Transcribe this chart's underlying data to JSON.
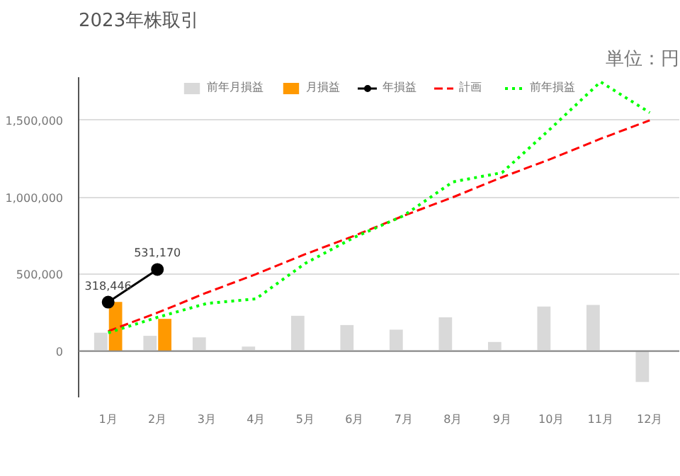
{
  "chart_data": {
    "type": "bar",
    "title": "2023年株取引",
    "annotations": [
      "単位：円"
    ],
    "categories": [
      "1月",
      "2月",
      "3月",
      "4月",
      "5月",
      "6月",
      "7月",
      "8月",
      "9月",
      "10月",
      "11月",
      "12月"
    ],
    "series": [
      {
        "name": "前年月損益",
        "color": "#d9d9d9",
        "values": [
          120000,
          100000,
          90000,
          30000,
          230000,
          170000,
          140000,
          220000,
          60000,
          290000,
          300000,
          -200000
        ]
      },
      {
        "name": "月損益",
        "color": "#ff9900",
        "values": [
          320000,
          210000,
          null,
          null,
          null,
          null,
          null,
          null,
          null,
          null,
          null,
          null
        ]
      },
      {
        "name": "年損益",
        "type": "line",
        "color": "#000000",
        "marker": "circle",
        "line_style": "solid",
        "values": [
          318446,
          531170,
          null,
          null,
          null,
          null,
          null,
          null,
          null,
          null,
          null,
          null
        ],
        "value_labels": [
          "318,446",
          "531,170",
          null,
          null,
          null,
          null,
          null,
          null,
          null,
          null,
          null,
          null
        ]
      },
      {
        "name": "計画",
        "type": "line",
        "color": "#ff0000",
        "marker": "none",
        "line_style": "dashed",
        "values": [
          130000,
          250000,
          380000,
          500000,
          630000,
          750000,
          880000,
          1000000,
          1130000,
          1250000,
          1380000,
          1500000
        ]
      },
      {
        "name": "前年損益",
        "type": "line",
        "color": "#00ff00",
        "marker": "none",
        "line_style": "dotted",
        "values": [
          120000,
          220000,
          310000,
          340000,
          570000,
          740000,
          880000,
          1100000,
          1160000,
          1450000,
          1750000,
          1550000
        ]
      }
    ],
    "ylim": [
      -300000,
      1780000
    ],
    "yticks": [
      0,
      {
        "value": 500000,
        "label": "500,000"
      },
      {
        "value": 1000000,
        "label": "1,000,000"
      },
      {
        "value": 1500000,
        "label": "1,500,000"
      }
    ],
    "grid": "y",
    "legend": "top"
  }
}
